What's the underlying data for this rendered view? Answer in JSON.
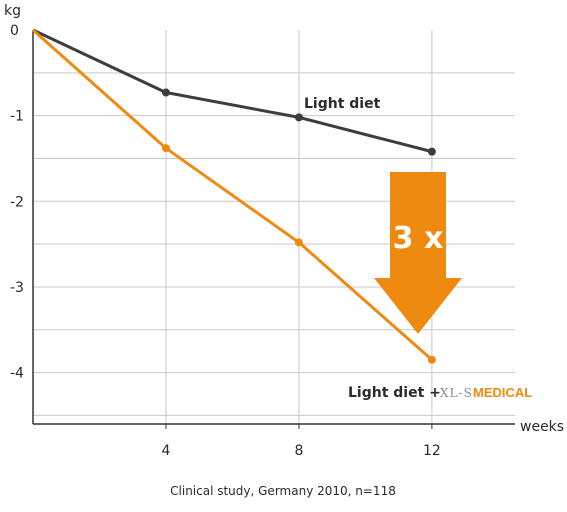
{
  "chart_data": {
    "type": "line",
    "ylabel": "kg",
    "xlabel": "weeks",
    "x": [
      0,
      4,
      8,
      12
    ],
    "x_ticks": [
      "4",
      "8",
      "12"
    ],
    "y_ticks": [
      "0",
      "-1",
      "-2",
      "-3",
      "-4"
    ],
    "xlim": [
      0,
      14.5
    ],
    "ylim": [
      -4.6,
      0
    ],
    "grid": true,
    "series": [
      {
        "name": "Light diet",
        "values": [
          0,
          -0.73,
          -1.02,
          -1.42
        ],
        "color": "#3d3d3d"
      },
      {
        "name": "Light diet +",
        "values": [
          0,
          -1.38,
          -2.48,
          -3.85
        ],
        "color": "#ef8a10"
      }
    ],
    "annotations": {
      "arrow_text": "3 x",
      "arrow_color": "#ef8a10",
      "brand_part1": "XL-S",
      "brand_part2": "MEDICAL"
    },
    "caption": "Clinical study, Germany 2010, n=118"
  }
}
